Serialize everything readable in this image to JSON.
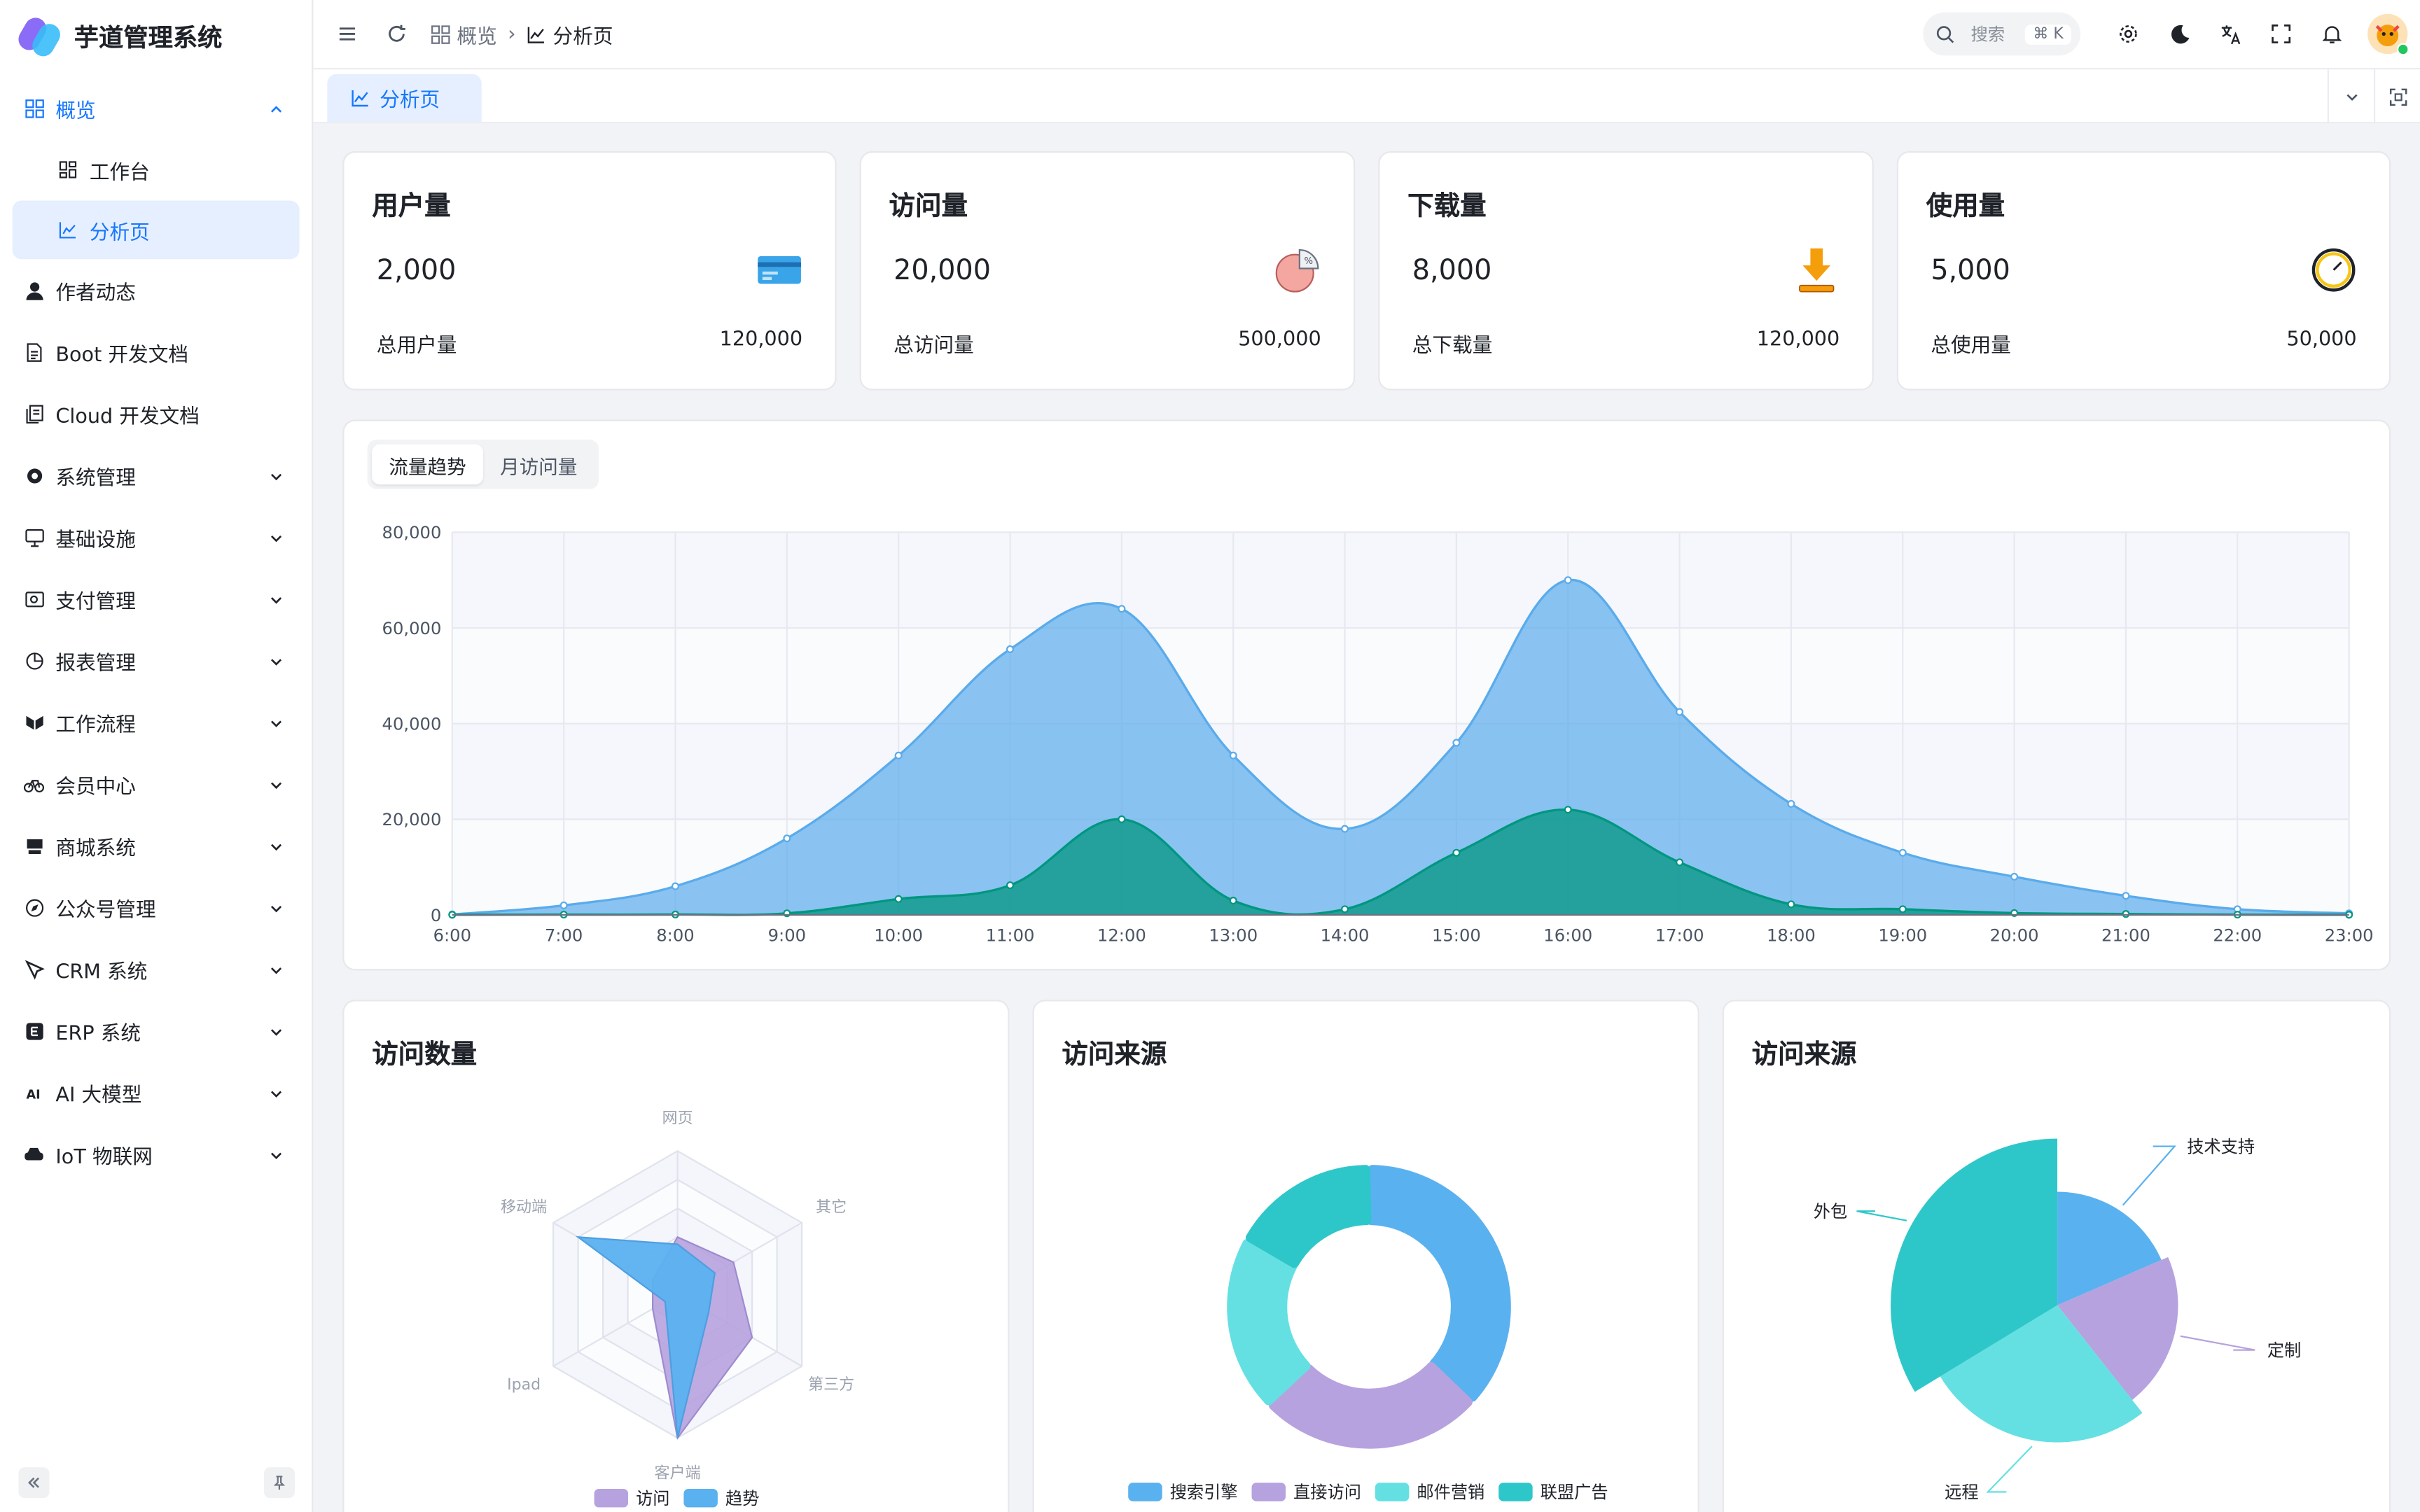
{
  "app": {
    "title": "芋道管理系统"
  },
  "sidebar": {
    "items": [
      {
        "label": "概览",
        "icon": "grid-icon",
        "expanded": true,
        "active": true
      },
      {
        "label": "工作台",
        "icon": "dashboard-icon",
        "sub": true
      },
      {
        "label": "分析页",
        "icon": "chart-icon",
        "sub": true,
        "selected": true
      },
      {
        "label": "作者动态",
        "icon": "user-icon"
      },
      {
        "label": "Boot 开发文档",
        "icon": "document-icon"
      },
      {
        "label": "Cloud 开发文档",
        "icon": "documents-icon"
      },
      {
        "label": "系统管理",
        "icon": "gear-icon",
        "collapsible": true
      },
      {
        "label": "基础设施",
        "icon": "monitor-icon",
        "collapsible": true
      },
      {
        "label": "支付管理",
        "icon": "wallet-icon",
        "collapsible": true
      },
      {
        "label": "报表管理",
        "icon": "pie-icon",
        "collapsible": true
      },
      {
        "label": "工作流程",
        "icon": "workflow-icon",
        "collapsible": true
      },
      {
        "label": "会员中心",
        "icon": "bicycle-icon",
        "collapsible": true
      },
      {
        "label": "商城系统",
        "icon": "store-icon",
        "collapsible": true
      },
      {
        "label": "公众号管理",
        "icon": "compass-icon",
        "collapsible": true
      },
      {
        "label": "CRM 系统",
        "icon": "pen-icon",
        "collapsible": true
      },
      {
        "label": "ERP 系统",
        "icon": "erp-icon",
        "collapsible": true
      },
      {
        "label": "AI 大模型",
        "icon": "ai-icon",
        "collapsible": true
      },
      {
        "label": "IoT 物联网",
        "icon": "router-icon",
        "collapsible": true
      }
    ]
  },
  "header": {
    "breadcrumb": [
      {
        "label": "概览"
      },
      {
        "label": "分析页"
      }
    ],
    "search": {
      "placeholder": "搜索",
      "shortcut": "⌘ K"
    }
  },
  "tabs": [
    {
      "label": "分析页",
      "active": true
    }
  ],
  "stats": [
    {
      "title": "用户量",
      "value": "2,000",
      "total_label": "总用户量",
      "total": "120,000",
      "icon": "card-icon"
    },
    {
      "title": "访问量",
      "value": "20,000",
      "total_label": "总访问量",
      "total": "500,000",
      "icon": "pie-chart-icon"
    },
    {
      "title": "下载量",
      "value": "8,000",
      "total_label": "总下载量",
      "total": "120,000",
      "icon": "download-icon"
    },
    {
      "title": "使用量",
      "value": "5,000",
      "total_label": "总使用量",
      "total": "50,000",
      "icon": "clock-icon"
    }
  ],
  "trend": {
    "segments": [
      {
        "label": "流量趋势",
        "active": true
      },
      {
        "label": "月访问量"
      }
    ]
  },
  "panels": {
    "radar_title": "访问数量",
    "donut_title": "访问来源",
    "rose_title": "访问来源"
  },
  "colors": {
    "accent": "#1677ff",
    "area1": "#5aabeb",
    "area2": "#019680",
    "purple": "#b6a2de",
    "teal": "#2ec7c9",
    "cyan": "#5ab1ef",
    "lightcyan": "#64e0e3"
  },
  "chart_data": [
    {
      "type": "area",
      "categories": [
        "6:00",
        "7:00",
        "8:00",
        "9:00",
        "10:00",
        "11:00",
        "12:00",
        "13:00",
        "14:00",
        "15:00",
        "16:00",
        "17:00",
        "18:00",
        "19:00",
        "20:00",
        "21:00",
        "22:00",
        "23:00"
      ],
      "series": [
        {
          "values": [
            111,
            2000,
            6000,
            16000,
            33333,
            55555,
            64000,
            33333,
            18000,
            36000,
            70000,
            42444,
            23222,
            13000,
            8000,
            4000,
            1200,
            333
          ]
        },
        {
          "values": [
            33,
            66,
            88,
            333,
            3333,
            6200,
            20000,
            3000,
            1200,
            13000,
            22000,
            11000,
            2221,
            1201,
            390,
            198,
            60,
            30
          ]
        }
      ],
      "ylim": [
        0,
        80000
      ],
      "yticks": [
        "0",
        "20,000",
        "40,000",
        "60,000",
        "80,000"
      ],
      "grid": true
    },
    {
      "type": "radar",
      "indicators": [
        "网页",
        "其它",
        "第三方",
        "客户端",
        "Ipad",
        "移动端"
      ],
      "max": 100,
      "series": [
        {
          "name": "访问",
          "values": [
            40,
            45,
            60,
            100,
            20,
            20
          ]
        },
        {
          "name": "趋势",
          "values": [
            35,
            30,
            25,
            100,
            10,
            80
          ]
        }
      ],
      "legend": "bottom"
    },
    {
      "type": "pie",
      "variant": "donut",
      "categories": [
        "搜索引擎",
        "直接访问",
        "邮件营销",
        "联盟广告"
      ],
      "values": [
        1048,
        735,
        580,
        484
      ],
      "legend": "bottom"
    },
    {
      "type": "pie",
      "variant": "rose",
      "categories": [
        "外包",
        "定制",
        "技术支持",
        "远程"
      ],
      "values": [
        500,
        310,
        274,
        400
      ]
    }
  ]
}
